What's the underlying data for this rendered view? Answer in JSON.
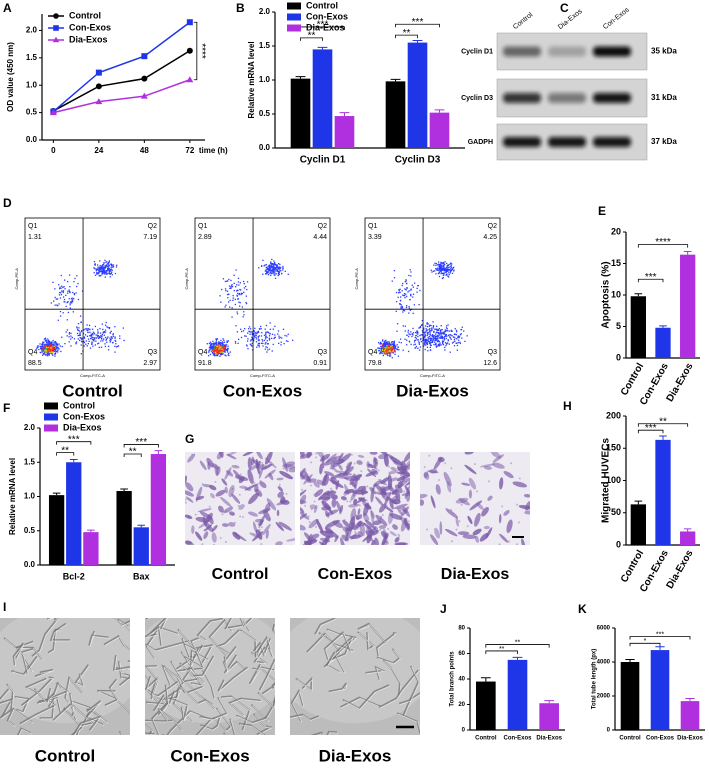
{
  "chart_data": [
    {
      "type": "line",
      "panel": "A",
      "ylabel": "OD value (450 nm)",
      "xlabel": "time (h)",
      "x": [
        0,
        24,
        48,
        72
      ],
      "xlim": [
        -6,
        80
      ],
      "xticks": [
        0,
        24,
        48,
        72
      ],
      "ylim": [
        0,
        2.3
      ],
      "yticks": [
        {
          "value": 0,
          "label": "0.0"
        },
        0.5,
        {
          "value": 1,
          "label": "1.0"
        },
        1.5,
        {
          "value": 2,
          "label": "2.0"
        }
      ],
      "legend": "upper left",
      "series": [
        {
          "name": "Control",
          "color": "#000000",
          "marker": "circle",
          "values": [
            0.53,
            0.98,
            1.12,
            1.63
          ]
        },
        {
          "name": "Con-Exos",
          "color": "#1f35e8",
          "marker": "square",
          "values": [
            0.52,
            1.23,
            1.53,
            2.15
          ]
        },
        {
          "name": "Dia-Exos",
          "color": "#b030e0",
          "marker": "triangle",
          "values": [
            0.5,
            0.7,
            0.8,
            1.1
          ]
        }
      ],
      "annotations": [
        "****"
      ]
    },
    {
      "type": "bar",
      "panel": "B",
      "ylabel": "Relative mRNA level",
      "categories": [
        "Cyclin D1",
        "Cyclin D3"
      ],
      "ylim": [
        0,
        2
      ],
      "yticks": [
        {
          "value": 0,
          "label": "0.0"
        },
        0.5,
        {
          "value": 1,
          "label": "1.0"
        },
        1.5,
        {
          "value": 2,
          "label": "2.0"
        }
      ],
      "legend": "upper left",
      "series": [
        {
          "name": "Control",
          "color": "#000000",
          "values": [
            1.02,
            0.98
          ],
          "errors": [
            0.03,
            0.03
          ]
        },
        {
          "name": "Con-Exos",
          "color": "#1f35e8",
          "values": [
            1.45,
            1.55
          ],
          "errors": [
            0.03,
            0.03
          ]
        },
        {
          "name": "Dia-Exos",
          "color": "#b030e0",
          "values": [
            0.47,
            0.52
          ],
          "errors": [
            0.05,
            0.04
          ]
        }
      ],
      "annotations": [
        "**",
        "***",
        "**",
        "***"
      ]
    },
    {
      "type": "bar",
      "panel": "E",
      "ylabel": "Apoptosis (%)",
      "categories": [
        "Control",
        "Con-Exos",
        "Dia-Exos"
      ],
      "values": [
        9.8,
        4.8,
        16.4
      ],
      "errors": [
        0.4,
        0.3,
        0.5
      ],
      "colors": [
        "#000000",
        "#1f35e8",
        "#b030e0"
      ],
      "ylim": [
        0,
        20
      ],
      "yticks": [
        0,
        5,
        10,
        15,
        20
      ],
      "annotations": [
        "***",
        "****"
      ]
    },
    {
      "type": "bar",
      "panel": "F",
      "ylabel": "Relative mRNA level",
      "categories": [
        "Bcl-2",
        "Bax"
      ],
      "ylim": [
        0,
        2
      ],
      "yticks": [
        {
          "value": 0,
          "label": "0.0"
        },
        0.5,
        {
          "value": 1,
          "label": "1.0"
        },
        1.5,
        {
          "value": 2,
          "label": "2.0"
        }
      ],
      "legend": "upper left",
      "series": [
        {
          "name": "Control",
          "color": "#000000",
          "values": [
            1.02,
            1.08
          ],
          "errors": [
            0.03,
            0.03
          ]
        },
        {
          "name": "Con-Exos",
          "color": "#1f35e8",
          "values": [
            1.5,
            0.55
          ],
          "errors": [
            0.04,
            0.03
          ]
        },
        {
          "name": "Dia-Exos",
          "color": "#b030e0",
          "values": [
            0.48,
            1.62
          ],
          "errors": [
            0.03,
            0.05
          ]
        }
      ],
      "annotations": [
        "**",
        "***",
        "**",
        "***"
      ]
    },
    {
      "type": "bar",
      "panel": "H",
      "ylabel": "Migrated HUVECs",
      "categories": [
        "Control",
        "Con-Exos",
        "Dia-Exos"
      ],
      "values": [
        63,
        163,
        21
      ],
      "errors": [
        5,
        6,
        4
      ],
      "colors": [
        "#000000",
        "#1f35e8",
        "#b030e0"
      ],
      "ylim": [
        0,
        200
      ],
      "yticks": [
        0,
        50,
        100,
        150,
        200
      ],
      "annotations": [
        "***",
        "**"
      ]
    },
    {
      "type": "bar",
      "panel": "J",
      "ylabel": "Total branch points",
      "categories": [
        "Control",
        "Con-Exos",
        "Dia-Exos"
      ],
      "values": [
        38,
        55,
        21
      ],
      "errors": [
        3,
        2,
        2
      ],
      "colors": [
        "#000000",
        "#1f35e8",
        "#b030e0"
      ],
      "ylim": [
        0,
        80
      ],
      "yticks": [
        0,
        20,
        40,
        60,
        80
      ],
      "annotations": [
        "**",
        "**"
      ]
    },
    {
      "type": "bar",
      "panel": "K",
      "ylabel": "Total tube length (px)",
      "categories": [
        "Control",
        "Con-Exos",
        "Dia-Exos"
      ],
      "values": [
        4000,
        4700,
        1700
      ],
      "errors": [
        150,
        200,
        150
      ],
      "colors": [
        "#000000",
        "#1f35e8",
        "#b030e0"
      ],
      "ylim": [
        0,
        6000
      ],
      "yticks": [
        0,
        2000,
        4000,
        6000
      ],
      "annotations": [
        "*",
        "***"
      ]
    }
  ],
  "blot": {
    "panel": "C",
    "lanes": [
      "Control",
      "Dia-Exos",
      "Con-Exos"
    ],
    "rows": [
      {
        "name": "Cyclin D1",
        "size": "35 kDa"
      },
      {
        "name": "Cyclin D3",
        "size": "31 kDa"
      },
      {
        "name": "GADPH",
        "size": "37 kDa"
      }
    ]
  },
  "flow": {
    "panel": "D",
    "xlabel": "Comp-FITC-A",
    "ylabel": "Comp-PE-A",
    "plots": [
      {
        "label": "Control",
        "quadrants": [
          {
            "name": "Q1",
            "value": 1.31
          },
          {
            "name": "Q2",
            "value": 7.19
          },
          {
            "name": "Q3",
            "value": 2.97
          },
          {
            "name": "Q4",
            "value": 88.5
          }
        ]
      },
      {
        "label": "Con-Exos",
        "quadrants": [
          {
            "name": "Q1",
            "value": 2.89
          },
          {
            "name": "Q2",
            "value": 4.44
          },
          {
            "name": "Q3",
            "value": 0.91
          },
          {
            "name": "Q4",
            "value": 91.8
          }
        ]
      },
      {
        "label": "Dia-Exos",
        "quadrants": [
          {
            "name": "Q1",
            "value": 3.39
          },
          {
            "name": "Q2",
            "value": 4.25
          },
          {
            "name": "Q3",
            "value": 12.6
          },
          {
            "name": "Q4",
            "value": 79.8
          }
        ]
      }
    ]
  },
  "transwell": {
    "panel": "G",
    "labels": [
      "Control",
      "Con-Exos",
      "Dia-Exos"
    ]
  },
  "tube": {
    "panel": "I",
    "labels": [
      "Control",
      "Con-Exos",
      "Dia-Exos"
    ]
  }
}
